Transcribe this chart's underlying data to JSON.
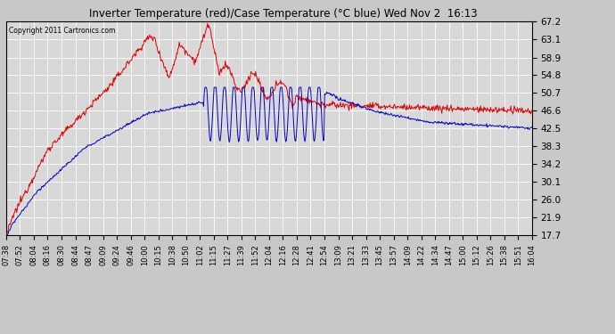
{
  "title": "Inverter Temperature (red)/Case Temperature (°C blue) Wed Nov 2  16:13",
  "copyright": "Copyright 2011 Cartronics.com",
  "yticks": [
    17.7,
    21.9,
    26.0,
    30.1,
    34.2,
    38.3,
    42.5,
    46.6,
    50.7,
    54.8,
    58.9,
    63.1,
    67.2
  ],
  "xtick_labels": [
    "07:38",
    "07:52",
    "08:04",
    "08:16",
    "08:30",
    "08:44",
    "08:47",
    "09:09",
    "09:24",
    "09:46",
    "10:00",
    "10:15",
    "10:38",
    "10:50",
    "11:02",
    "11:15",
    "11:27",
    "11:39",
    "11:52",
    "12:04",
    "12:16",
    "12:28",
    "12:41",
    "12:54",
    "13:09",
    "13:21",
    "13:33",
    "13:45",
    "13:57",
    "14:09",
    "14:22",
    "14:34",
    "14:47",
    "15:00",
    "15:12",
    "15:26",
    "15:38",
    "15:51",
    "16:04"
  ],
  "bg_color": "#c8c8c8",
  "plot_bg_color": "#d8d8d8",
  "grid_color": "#ffffff",
  "red_color": "#dd0000",
  "blue_color": "#0000cc",
  "ymin": 17.7,
  "ymax": 67.2
}
